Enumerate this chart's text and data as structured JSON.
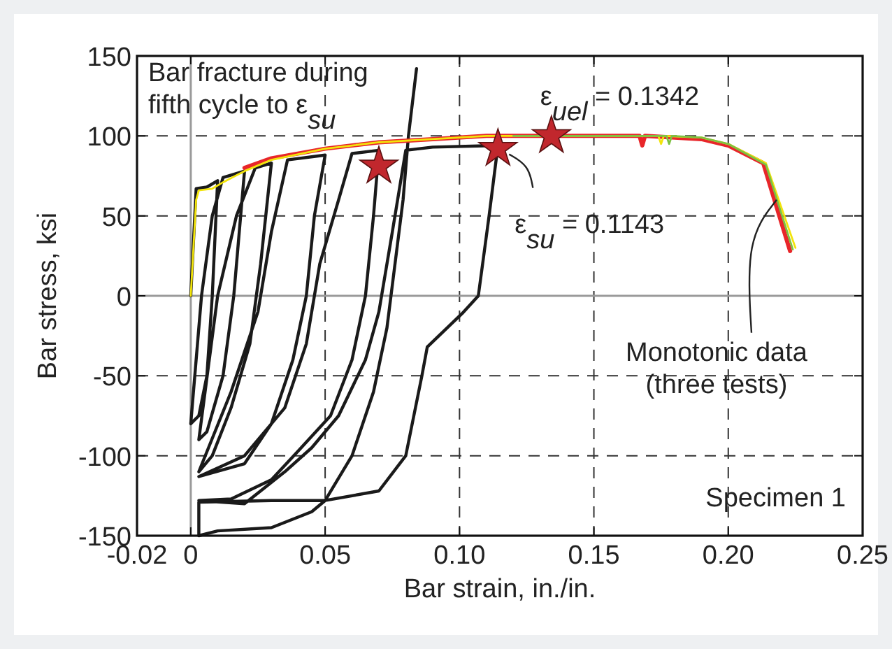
{
  "chart_data": {
    "type": "line",
    "xlabel": "Bar strain, in./in.",
    "ylabel": "Bar stress, ksi",
    "xlim": [
      -0.02,
      0.25
    ],
    "ylim": [
      -150,
      150
    ],
    "xticks": [
      -0.02,
      0,
      0.05,
      {
        "value": 0.1,
        "label": "0.10"
      },
      0.15,
      {
        "value": 0.2,
        "label": "0.20"
      },
      0.25
    ],
    "yticks": [
      -150,
      -100,
      -50,
      0,
      50,
      100,
      150
    ],
    "grid": true,
    "line_style": "solid",
    "marker": "none",
    "series": [
      {
        "color": "#e8262a",
        "x": [
          0.02,
          0.03,
          0.05,
          0.07,
          0.09,
          0.11,
          0.13,
          0.15,
          0.167,
          0.168,
          0.169,
          0.19,
          0.2,
          0.213,
          0.223
        ],
        "values": [
          80,
          86,
          92,
          96,
          98,
          100,
          100,
          100,
          100,
          94,
          100,
          98,
          94,
          83,
          28
        ]
      },
      {
        "color": "#f2e40b",
        "x": [
          0,
          0.001,
          0.002,
          0.003,
          0.008,
          0.012,
          0.02,
          0.03,
          0.05,
          0.07,
          0.09,
          0.11,
          0.13,
          0.15,
          0.174,
          0.175,
          0.176,
          0.19,
          0.2,
          0.214,
          0.225
        ],
        "values": [
          0,
          30,
          60,
          66,
          67,
          71,
          78,
          85,
          92,
          96,
          98,
          100,
          100,
          100,
          100,
          95,
          100,
          99,
          95,
          83,
          30
        ]
      },
      {
        "color": "#7dc242",
        "x": [
          0.12,
          0.15,
          0.177,
          0.178,
          0.179,
          0.19,
          0.2,
          0.214,
          0.224
        ],
        "values": [
          100,
          100,
          100,
          95,
          100,
          99,
          95,
          82,
          29
        ]
      },
      {
        "color": "#1a1a1a",
        "x": [
          0,
          0.002,
          0.006,
          0.01,
          0.008,
          0.006,
          0.003,
          0,
          0.004,
          0.008,
          0.012,
          0.02,
          0.016,
          0.012,
          0.006,
          0.003,
          0.01,
          0.017,
          0.024,
          0.03,
          0.026,
          0.022,
          0.015,
          0.008,
          0.003,
          0.015,
          0.025,
          0.03,
          0.036,
          0.05,
          0.046,
          0.043,
          0.038,
          0.03,
          0.02,
          0.003,
          0.02,
          0.035,
          0.043,
          0.048,
          0.055,
          0.06,
          0.07,
          0.068,
          0.065,
          0.06,
          0.052,
          0.04,
          0.03,
          0.015,
          0.003,
          0.02,
          0.035,
          0.045,
          0.055,
          0.065,
          0.07,
          0.075,
          0.08,
          0.09,
          0.1143,
          0.111,
          0.107,
          0.101,
          0.088,
          0.086,
          0.08,
          0.07,
          0.05,
          0.03,
          0.003,
          0.003,
          0.01,
          0.03,
          0.045,
          0.05,
          0.06,
          0.068,
          0.073,
          0.076,
          0.079,
          0.081,
          0.084
        ],
        "values": [
          0,
          67,
          68,
          72,
          0,
          -50,
          -75,
          -80,
          0,
          50,
          74,
          78,
          0,
          -50,
          -85,
          -90,
          0,
          50,
          80,
          83,
          20,
          -30,
          -70,
          -100,
          -110,
          -60,
          -10,
          40,
          85,
          88,
          50,
          0,
          -40,
          -80,
          -105,
          -113,
          -100,
          -70,
          -30,
          20,
          60,
          89,
          91,
          50,
          0,
          -40,
          -75,
          -97,
          -115,
          -127,
          -128,
          -130,
          -110,
          -95,
          -75,
          -40,
          -10,
          40,
          91,
          93,
          94,
          50,
          0,
          -11,
          -32,
          -50,
          -100,
          -122,
          -128,
          -128,
          -129,
          -150,
          -147,
          -145,
          -135,
          -128,
          -100,
          -60,
          -20,
          20,
          60,
          100,
          142
        ]
      },
      {
        "type": "scatter",
        "marker": "star",
        "color": "#c1272d",
        "x": [
          0.07,
          0.1143,
          0.1342
        ],
        "values": [
          81,
          92,
          100
        ]
      }
    ],
    "annotations": [
      "Bar fracture during\nfifth cycle to ε$_{su}$",
      {
        "text": "ε$_{uel}$ = 0.1342",
        "x": 0.1342,
        "y": 100
      },
      {
        "text": "ε$_{su}$ = 0.1143",
        "x": 0.1143,
        "y": 92
      },
      {
        "text": "Monotonic data\n(three tests)",
        "x": 0.218,
        "y": 60
      },
      "Specimen 1"
    ]
  }
}
